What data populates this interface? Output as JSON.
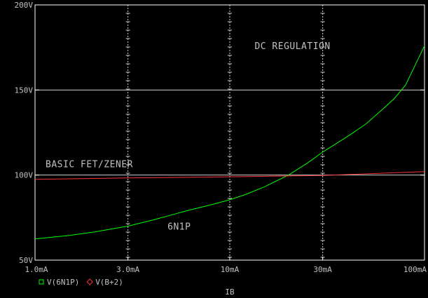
{
  "chart_data": {
    "type": "line",
    "title": "",
    "xlabel": "IB",
    "ylabel": "",
    "x_scale": "log",
    "x_unit": "A",
    "xlim": [
      0.001,
      0.1
    ],
    "ylim": [
      50,
      200
    ],
    "x_ticks": [
      0.001,
      0.003,
      0.01,
      0.03,
      0.1
    ],
    "x_tick_labels": [
      "1.0mA",
      "3.0mA",
      "10mA",
      "30mA",
      "100mA"
    ],
    "y_ticks": [
      50,
      100,
      150,
      200
    ],
    "y_tick_labels": [
      "50V",
      "100V",
      "150V",
      "200V"
    ],
    "grid": true,
    "legend_position": "bottom-left",
    "background_color": "#000000",
    "axis_color": "#ffffff",
    "series": [
      {
        "name": "V(6N1P)",
        "marker": "square",
        "color": "#00ff00",
        "x": [
          0.001,
          0.0015,
          0.002,
          0.003,
          0.004,
          0.005,
          0.006,
          0.008,
          0.01,
          0.012,
          0.015,
          0.02,
          0.025,
          0.03,
          0.04,
          0.05,
          0.06,
          0.07,
          0.08,
          0.1
        ],
        "y": [
          62.5,
          64.5,
          66.5,
          70,
          73.5,
          76.5,
          79,
          82.5,
          85.5,
          88.5,
          93,
          100,
          107,
          113.5,
          122.5,
          130,
          138,
          145,
          153,
          176
        ]
      },
      {
        "name": "V(B+2)",
        "marker": "diamond",
        "color": "#ff3333",
        "x": [
          0.001,
          0.003,
          0.01,
          0.03,
          0.1
        ],
        "y": [
          97.5,
          98.3,
          99,
          99.8,
          102
        ]
      }
    ],
    "annotations": [
      {
        "text": "DC REGULATION",
        "x": 0.021,
        "y": 174
      },
      {
        "text": "BASIC FET/ZENER",
        "x": 0.0019,
        "y": 104.5
      },
      {
        "text": "6N1P",
        "x": 0.0055,
        "y": 68
      }
    ]
  }
}
